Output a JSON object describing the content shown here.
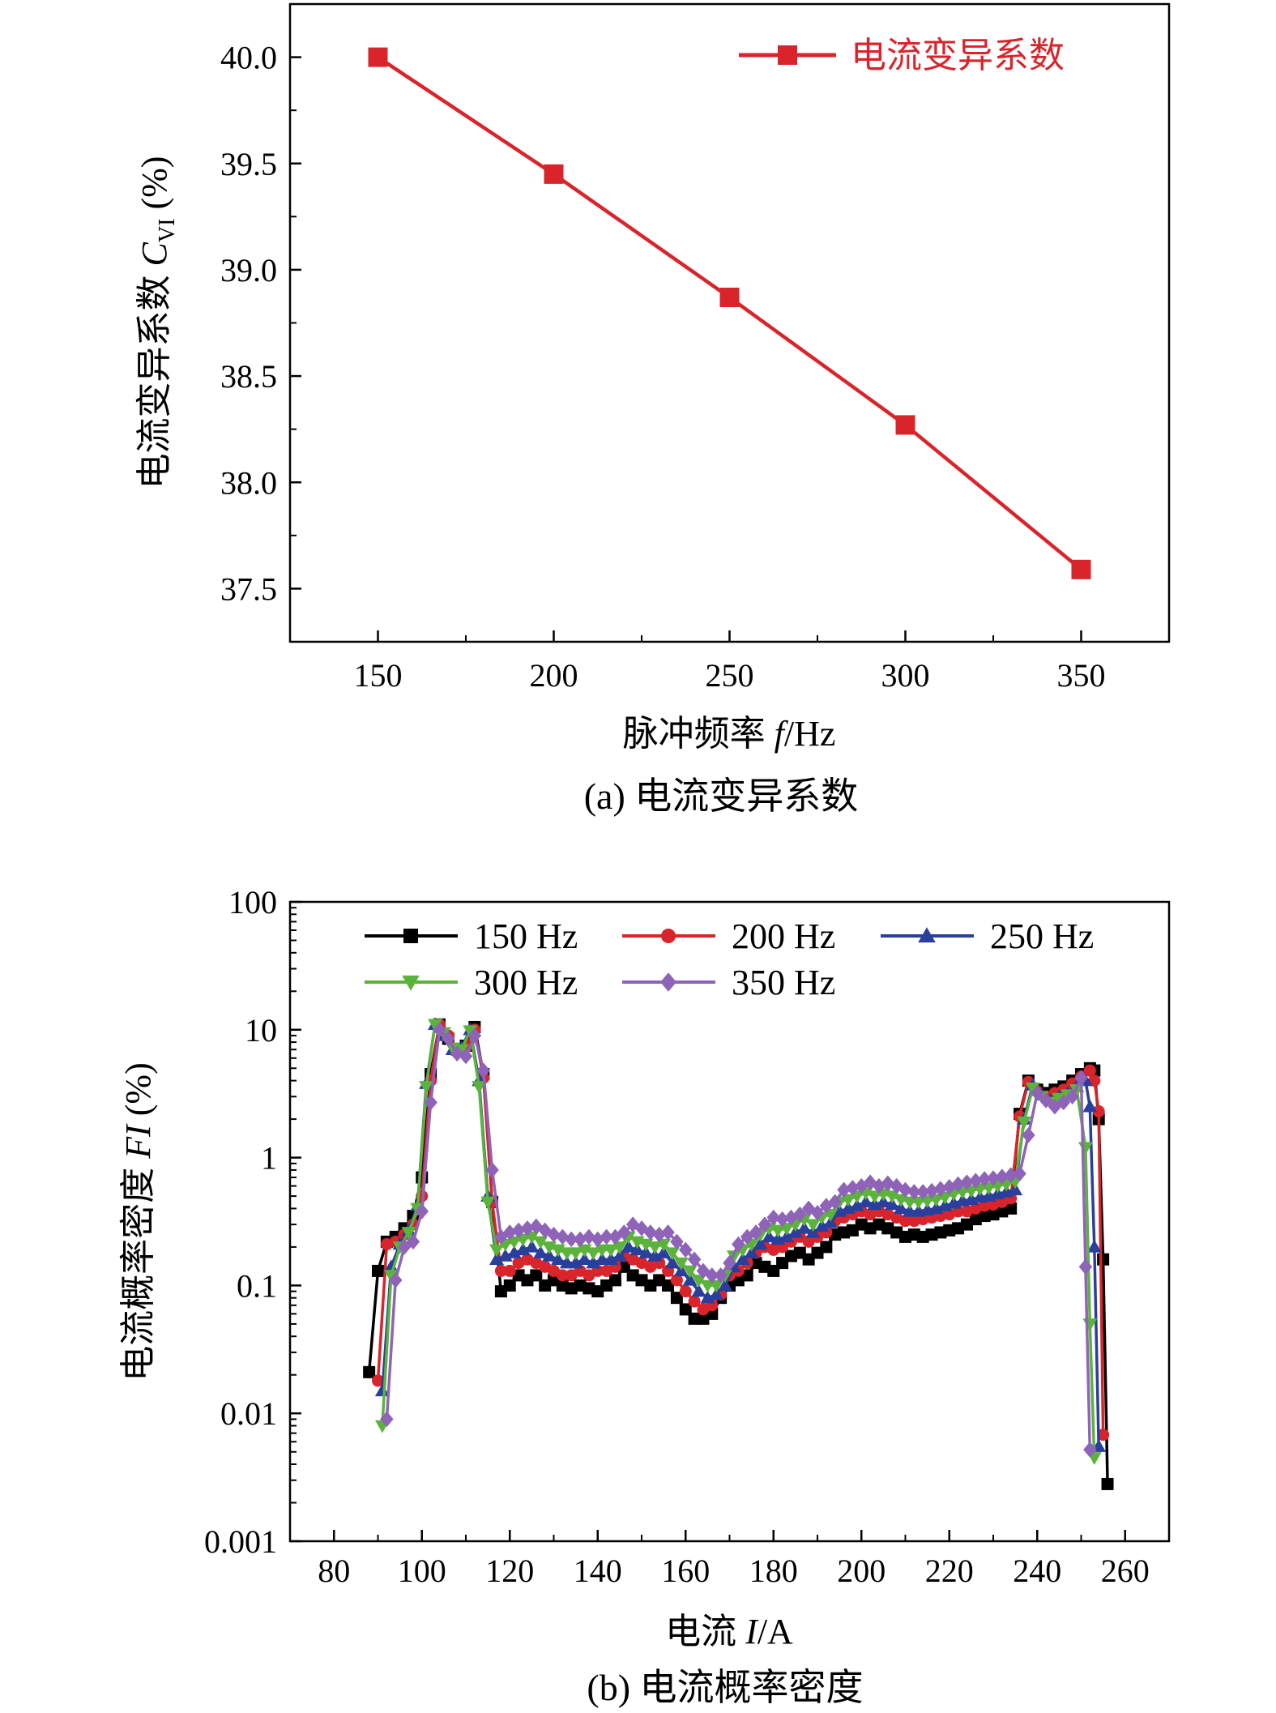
{
  "chart_data": [
    {
      "type": "line",
      "caption": "(a) 电流变异系数",
      "xlabel_prefix": "脉冲频率 ",
      "xlabel_var": "f",
      "xlabel_unit": "/Hz",
      "ylabel_prefix": "电流变异系数 ",
      "ylabel_var": "C",
      "ylabel_sub": "VI",
      "ylabel_unit": " (%)",
      "xlim": [
        125,
        375
      ],
      "ylim": [
        37.25,
        40.25
      ],
      "xticks": [
        150,
        200,
        250,
        300,
        350
      ],
      "yticks": [
        37.5,
        38.0,
        38.5,
        39.0,
        39.5,
        40.0
      ],
      "ytick_labels": [
        "37.5",
        "38.0",
        "38.5",
        "39.0",
        "39.5",
        "40.0"
      ],
      "legend_position": "top-right",
      "series": [
        {
          "name": "电流变异系数",
          "color": "#d8242a",
          "marker": "square",
          "x": [
            150,
            200,
            250,
            300,
            350
          ],
          "y": [
            40.0,
            39.45,
            38.87,
            38.27,
            37.59
          ]
        }
      ]
    },
    {
      "type": "line",
      "caption": "(b) 电流概率密度",
      "xlabel_prefix": "电流 ",
      "xlabel_var": "I",
      "xlabel_unit": "/A",
      "ylabel_prefix": "电流概率密度 ",
      "ylabel_var": "FI",
      "ylabel_unit": " (%)",
      "yscale": "log",
      "xlim": [
        70,
        270
      ],
      "ylim": [
        0.001,
        100
      ],
      "xticks": [
        80,
        100,
        120,
        140,
        160,
        180,
        200,
        220,
        240,
        260
      ],
      "yticks": [
        0.001,
        0.01,
        0.1,
        1,
        10,
        100
      ],
      "ytick_labels": [
        "0.001",
        "0.01",
        "0.1",
        "1",
        "10",
        "100"
      ],
      "legend_position": "top",
      "series": [
        {
          "name": "150 Hz",
          "color": "#000000",
          "marker": "square",
          "x": [
            88,
            90,
            92,
            94,
            96,
            98,
            100,
            102,
            104,
            106,
            108,
            110,
            112,
            114,
            116,
            118,
            120,
            122,
            124,
            126,
            128,
            130,
            132,
            134,
            136,
            138,
            140,
            142,
            144,
            146,
            148,
            150,
            152,
            154,
            156,
            158,
            160,
            162,
            164,
            166,
            168,
            170,
            172,
            174,
            176,
            178,
            180,
            182,
            184,
            186,
            188,
            190,
            192,
            194,
            196,
            198,
            200,
            202,
            204,
            206,
            208,
            210,
            212,
            214,
            216,
            218,
            220,
            222,
            224,
            226,
            228,
            230,
            232,
            234,
            236,
            238,
            240,
            242,
            244,
            246,
            248,
            250,
            252,
            253,
            254,
            255,
            256
          ],
          "y": [
            0.021,
            0.13,
            0.22,
            0.24,
            0.28,
            0.35,
            0.7,
            4.5,
            11,
            8.5,
            7,
            7.5,
            10.5,
            4.5,
            0.45,
            0.09,
            0.1,
            0.12,
            0.11,
            0.12,
            0.1,
            0.11,
            0.1,
            0.095,
            0.1,
            0.095,
            0.09,
            0.1,
            0.11,
            0.14,
            0.12,
            0.11,
            0.1,
            0.11,
            0.1,
            0.08,
            0.065,
            0.055,
            0.055,
            0.06,
            0.08,
            0.1,
            0.11,
            0.12,
            0.15,
            0.14,
            0.13,
            0.15,
            0.17,
            0.18,
            0.16,
            0.18,
            0.2,
            0.25,
            0.26,
            0.27,
            0.3,
            0.28,
            0.3,
            0.28,
            0.26,
            0.24,
            0.25,
            0.24,
            0.25,
            0.26,
            0.27,
            0.28,
            0.3,
            0.33,
            0.35,
            0.36,
            0.38,
            0.4,
            2.2,
            4,
            3.4,
            3.2,
            3.4,
            3.6,
            4,
            4.5,
            5,
            4.8,
            2,
            0.16,
            0.0028
          ]
        },
        {
          "name": "200 Hz",
          "color": "#d8242a",
          "marker": "circle",
          "x": [
            90,
            92,
            94,
            96,
            98,
            100,
            102,
            104,
            106,
            108,
            110,
            112,
            114,
            116,
            118,
            120,
            122,
            124,
            126,
            128,
            130,
            132,
            134,
            136,
            138,
            140,
            142,
            144,
            146,
            148,
            150,
            152,
            154,
            156,
            158,
            160,
            162,
            164,
            166,
            168,
            170,
            172,
            174,
            176,
            178,
            180,
            182,
            184,
            186,
            188,
            190,
            192,
            194,
            196,
            198,
            200,
            202,
            204,
            206,
            208,
            210,
            212,
            214,
            216,
            218,
            220,
            222,
            224,
            226,
            228,
            230,
            232,
            234,
            236,
            238,
            240,
            242,
            244,
            246,
            248,
            250,
            252,
            253,
            254,
            255
          ],
          "y": [
            0.018,
            0.21,
            0.22,
            0.25,
            0.3,
            0.5,
            4,
            11,
            9,
            7,
            7.3,
            10,
            4.2,
            0.45,
            0.13,
            0.13,
            0.15,
            0.16,
            0.15,
            0.14,
            0.13,
            0.12,
            0.12,
            0.13,
            0.12,
            0.13,
            0.13,
            0.14,
            0.17,
            0.16,
            0.15,
            0.14,
            0.15,
            0.13,
            0.11,
            0.09,
            0.075,
            0.065,
            0.07,
            0.085,
            0.12,
            0.13,
            0.15,
            0.18,
            0.2,
            0.19,
            0.2,
            0.22,
            0.24,
            0.22,
            0.24,
            0.26,
            0.32,
            0.34,
            0.36,
            0.38,
            0.36,
            0.38,
            0.36,
            0.34,
            0.32,
            0.32,
            0.33,
            0.34,
            0.35,
            0.36,
            0.38,
            0.38,
            0.4,
            0.42,
            0.43,
            0.45,
            0.48,
            2.1,
            3.9,
            3.3,
            3,
            3.2,
            3.4,
            3.8,
            4.3,
            4.8,
            4,
            2.3,
            0.0068
          ]
        },
        {
          "name": "250 Hz",
          "color": "#2a3f9c",
          "marker": "triangle-up",
          "x": [
            91,
            93,
            95,
            97,
            99,
            101,
            103,
            105,
            107,
            109,
            111,
            113,
            115,
            117,
            119,
            121,
            123,
            125,
            127,
            129,
            131,
            133,
            135,
            137,
            139,
            141,
            143,
            145,
            147,
            149,
            151,
            153,
            155,
            157,
            159,
            161,
            163,
            165,
            167,
            169,
            171,
            173,
            175,
            177,
            179,
            181,
            183,
            185,
            187,
            189,
            191,
            193,
            195,
            197,
            199,
            201,
            203,
            205,
            207,
            209,
            211,
            213,
            215,
            217,
            219,
            221,
            223,
            225,
            227,
            229,
            231,
            233,
            235,
            237,
            239,
            241,
            243,
            245,
            247,
            249,
            251,
            252,
            253,
            254
          ],
          "y": [
            0.015,
            0.14,
            0.21,
            0.27,
            0.42,
            3.8,
            11,
            9,
            7,
            7.2,
            10,
            4,
            0.5,
            0.16,
            0.17,
            0.18,
            0.19,
            0.2,
            0.18,
            0.17,
            0.16,
            0.15,
            0.15,
            0.16,
            0.15,
            0.16,
            0.16,
            0.17,
            0.2,
            0.19,
            0.18,
            0.17,
            0.18,
            0.15,
            0.13,
            0.11,
            0.09,
            0.08,
            0.085,
            0.1,
            0.14,
            0.16,
            0.18,
            0.21,
            0.24,
            0.23,
            0.24,
            0.26,
            0.28,
            0.26,
            0.29,
            0.31,
            0.38,
            0.4,
            0.42,
            0.45,
            0.43,
            0.45,
            0.43,
            0.4,
            0.38,
            0.38,
            0.39,
            0.4,
            0.42,
            0.44,
            0.46,
            0.47,
            0.49,
            0.5,
            0.52,
            0.54,
            0.56,
            2,
            3.7,
            3.1,
            2.8,
            3,
            3.2,
            3.6,
            4,
            2.5,
            0.2,
            0.0055
          ]
        },
        {
          "name": "300 Hz",
          "color": "#5bb33c",
          "marker": "triangle-down",
          "x": [
            91,
            93,
            95,
            97,
            99,
            101,
            103,
            105,
            107,
            109,
            111,
            113,
            115,
            117,
            119,
            121,
            123,
            125,
            127,
            129,
            131,
            133,
            135,
            137,
            139,
            141,
            143,
            145,
            147,
            149,
            151,
            153,
            155,
            157,
            159,
            161,
            163,
            165,
            167,
            169,
            171,
            173,
            175,
            177,
            179,
            181,
            183,
            185,
            187,
            189,
            191,
            193,
            195,
            197,
            199,
            201,
            203,
            205,
            207,
            209,
            211,
            213,
            215,
            217,
            219,
            221,
            223,
            225,
            227,
            229,
            231,
            233,
            235,
            237,
            239,
            241,
            243,
            245,
            247,
            249,
            251,
            252,
            253
          ],
          "y": [
            0.008,
            0.12,
            0.2,
            0.26,
            0.4,
            3.6,
            11,
            9.5,
            7.2,
            7,
            9.8,
            3.6,
            0.45,
            0.19,
            0.21,
            0.22,
            0.23,
            0.24,
            0.22,
            0.2,
            0.19,
            0.18,
            0.18,
            0.19,
            0.18,
            0.19,
            0.19,
            0.2,
            0.24,
            0.22,
            0.21,
            0.2,
            0.21,
            0.18,
            0.15,
            0.13,
            0.11,
            0.1,
            0.1,
            0.12,
            0.17,
            0.19,
            0.21,
            0.25,
            0.28,
            0.27,
            0.28,
            0.3,
            0.33,
            0.3,
            0.34,
            0.36,
            0.45,
            0.47,
            0.5,
            0.53,
            0.5,
            0.52,
            0.5,
            0.47,
            0.45,
            0.45,
            0.46,
            0.47,
            0.49,
            0.52,
            0.54,
            0.55,
            0.57,
            0.58,
            0.6,
            0.62,
            0.65,
            1.9,
            3.5,
            3,
            2.7,
            2.9,
            3.1,
            3.4,
            1.2,
            0.05,
            0.0045
          ]
        },
        {
          "name": "350 Hz",
          "color": "#8e63b8",
          "marker": "diamond",
          "x": [
            92,
            94,
            96,
            98,
            100,
            102,
            104,
            106,
            108,
            110,
            112,
            114,
            116,
            118,
            120,
            122,
            124,
            126,
            128,
            130,
            132,
            134,
            136,
            138,
            140,
            142,
            144,
            146,
            148,
            150,
            152,
            154,
            156,
            158,
            160,
            162,
            164,
            166,
            168,
            170,
            172,
            174,
            176,
            178,
            180,
            182,
            184,
            186,
            188,
            190,
            192,
            194,
            196,
            198,
            200,
            202,
            204,
            206,
            208,
            210,
            212,
            214,
            216,
            218,
            220,
            222,
            224,
            226,
            228,
            230,
            232,
            234,
            236,
            238,
            240,
            242,
            244,
            246,
            248,
            250,
            251,
            252
          ],
          "y": [
            0.009,
            0.11,
            0.2,
            0.22,
            0.38,
            2.7,
            10,
            8.5,
            6.5,
            6.2,
            9,
            4.8,
            0.8,
            0.24,
            0.26,
            0.27,
            0.28,
            0.29,
            0.27,
            0.25,
            0.24,
            0.23,
            0.23,
            0.24,
            0.23,
            0.24,
            0.24,
            0.26,
            0.3,
            0.28,
            0.26,
            0.25,
            0.26,
            0.22,
            0.19,
            0.16,
            0.13,
            0.12,
            0.12,
            0.15,
            0.21,
            0.24,
            0.26,
            0.3,
            0.34,
            0.33,
            0.34,
            0.36,
            0.4,
            0.37,
            0.42,
            0.45,
            0.56,
            0.58,
            0.6,
            0.64,
            0.6,
            0.63,
            0.6,
            0.56,
            0.54,
            0.54,
            0.55,
            0.57,
            0.59,
            0.62,
            0.64,
            0.66,
            0.68,
            0.69,
            0.71,
            0.73,
            0.75,
            1.5,
            3.2,
            2.8,
            2.5,
            2.7,
            3,
            4.2,
            0.14,
            0.0052
          ]
        }
      ]
    }
  ]
}
